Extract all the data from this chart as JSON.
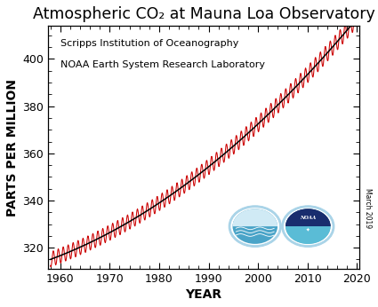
{
  "title": "Atmospheric CO₂ at Mauna Loa Observatory",
  "xlabel": "YEAR",
  "ylabel": "PARTS PER MILLION",
  "annotation_line1": "Scripps Institution of Oceanography",
  "annotation_line2": "NOAA Earth System Research Laboratory",
  "side_text": "March 2019",
  "xlim": [
    1957.5,
    2020.5
  ],
  "ylim": [
    311,
    414
  ],
  "yticks": [
    320,
    340,
    360,
    380,
    400
  ],
  "xticks": [
    1960,
    1970,
    1980,
    1990,
    2000,
    2010,
    2020
  ],
  "trend_color": "#000000",
  "seasonal_color": "#cc0000",
  "background_color": "#ffffff",
  "plot_bg_color": "#ffffff",
  "title_fontsize": 12.5,
  "label_fontsize": 10,
  "tick_fontsize": 9,
  "annotation_fontsize": 8,
  "year_start": 1958.0,
  "year_end": 2019.3
}
